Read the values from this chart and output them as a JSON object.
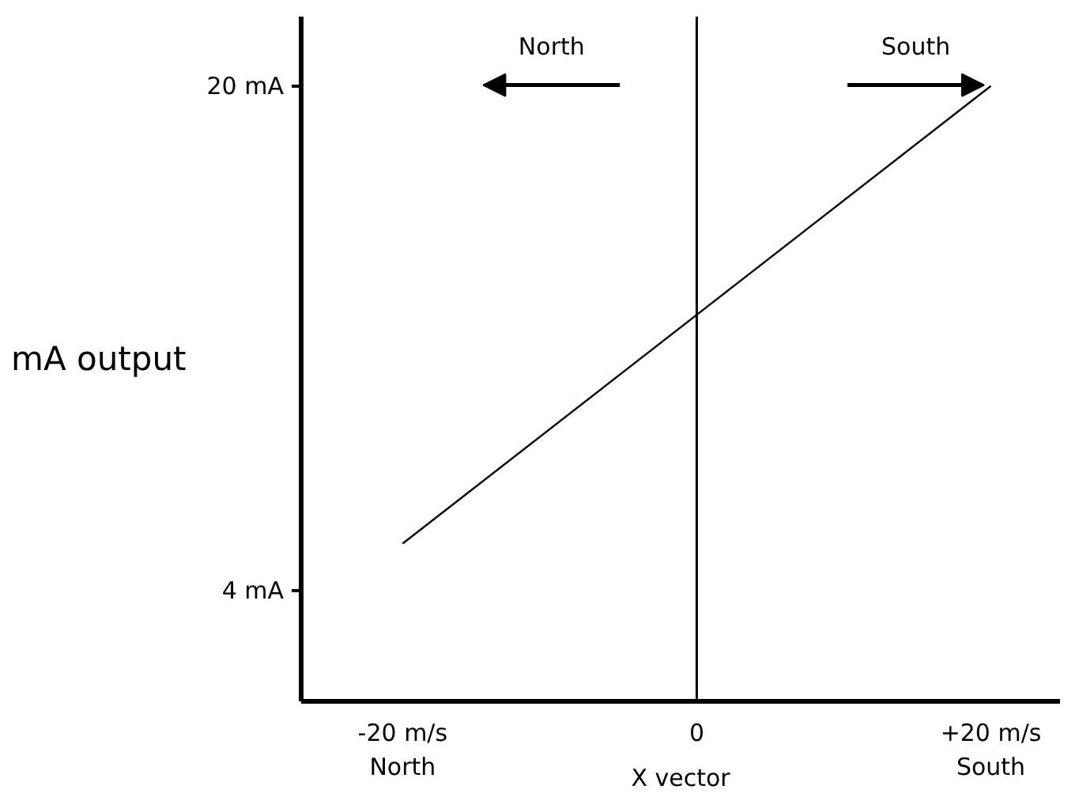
{
  "chart_data": {
    "type": "line",
    "ylabel": "mA output",
    "xlabel": "X vector",
    "x": [
      -20,
      20
    ],
    "series": [
      {
        "color": "#000000",
        "values": [
          5.5,
          20
        ]
      }
    ],
    "xlim": [
      -26.9,
      24.7
    ],
    "ylim": [
      0.5,
      22.2
    ],
    "xticks": [
      {
        "value": -20,
        "label": "-20 m/s\nNorth"
      },
      {
        "value": 0,
        "label": "0"
      },
      {
        "value": 20,
        "label": "+20 m/s\nSouth"
      }
    ],
    "yticks": [
      {
        "value": 4,
        "label": "4 mA"
      },
      {
        "value": 20,
        "label": "20 mA"
      }
    ],
    "ref_lines": [
      {
        "axis": "x",
        "value": 0,
        "color": "#000000"
      }
    ],
    "annotations": [
      "North",
      "South"
    ],
    "grid": false,
    "marker": "none",
    "line_style": "solid"
  }
}
